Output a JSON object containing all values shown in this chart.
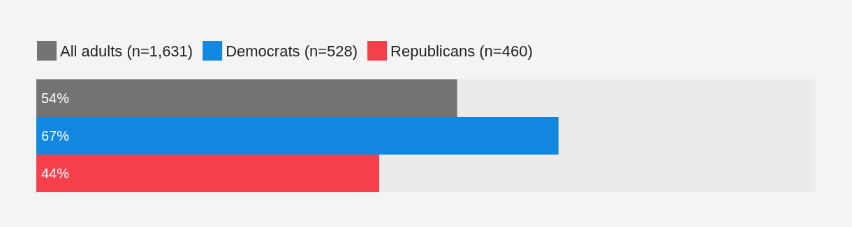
{
  "chart_data": {
    "type": "bar",
    "orientation": "horizontal",
    "categories": [
      null
    ],
    "series": [
      {
        "name": "All adults (n=1,631)",
        "color": "#737373",
        "values": [
          54
        ],
        "value_labels": [
          "54%"
        ]
      },
      {
        "name": "Democrats (n=528)",
        "color": "#1287e0",
        "values": [
          67
        ],
        "value_labels": [
          "67%"
        ]
      },
      {
        "name": "Republicans (n=460)",
        "color": "#f5404b",
        "values": [
          44
        ],
        "value_labels": [
          "44%"
        ]
      }
    ],
    "xlim": [
      0,
      100
    ],
    "legend": "top left"
  }
}
